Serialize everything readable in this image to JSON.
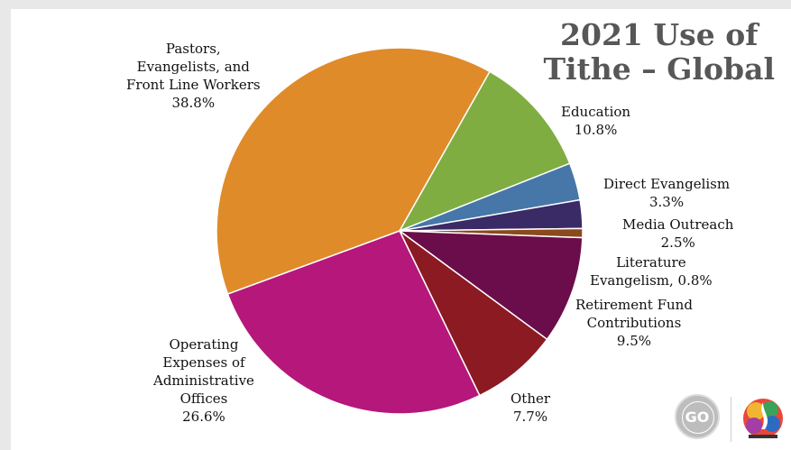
{
  "title": {
    "line1": "2021 Use of",
    "line2": "Tithe – Global"
  },
  "chart_data": {
    "type": "pie",
    "title": "2021 Use of Tithe – Global",
    "slices": [
      {
        "label": "Education",
        "value": 10.8,
        "color": "#7fad42"
      },
      {
        "label": "Direct Evangelism",
        "value": 3.3,
        "color": "#4677a8"
      },
      {
        "label": "Media Outreach",
        "value": 2.5,
        "color": "#3a2a66"
      },
      {
        "label": "Literature Evangelism",
        "value": 0.8,
        "color": "#8b4a1c"
      },
      {
        "label": "Retirement Fund Contributions",
        "value": 9.5,
        "color": "#6b0d4a"
      },
      {
        "label": "Other",
        "value": 7.7,
        "color": "#8b1a22"
      },
      {
        "label": "Operating Expenses of Administrative Offices",
        "value": 26.6,
        "color": "#b5177b"
      },
      {
        "label": "Pastors, Evangelists, and Front Line Workers",
        "value": 38.8,
        "color": "#df8b2a"
      }
    ]
  },
  "labels": {
    "pastors": [
      "Pastors,",
      "Evangelists, and",
      "Front Line Workers",
      "38.8%"
    ],
    "education": [
      "Education",
      "10.8%"
    ],
    "direct": [
      "Direct Evangelism",
      "3.3%"
    ],
    "media": [
      "Media Outreach",
      "2.5%"
    ],
    "literature": [
      "Literature",
      "Evangelism, 0.8%"
    ],
    "retirement": [
      "Retirement Fund",
      "Contributions",
      "9.5%"
    ],
    "other": [
      "Other",
      "7.7%"
    ],
    "operating": [
      "Operating",
      "Expenses of",
      "Administrative",
      "Offices",
      "26.6%"
    ]
  },
  "logos": {
    "left_icon": "i-will-go-logo",
    "right_icon": "church-flame-logo"
  }
}
